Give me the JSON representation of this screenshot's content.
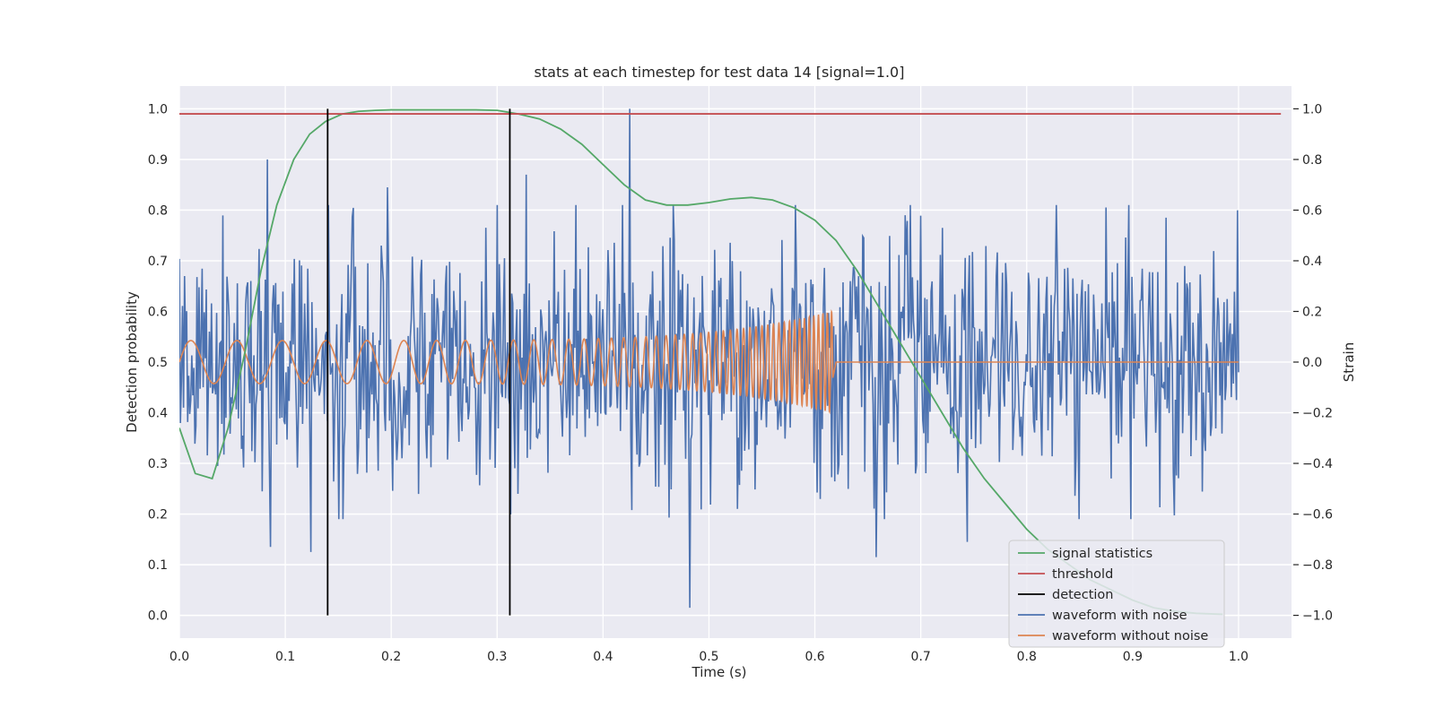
{
  "chart_data": {
    "type": "line",
    "title": "stats at each timestep for test data 14 [signal=1.0]",
    "xlabel": "Time (s)",
    "ylabel": "Detection probability",
    "y2label": "Strain",
    "xlim": [
      0.0,
      1.05
    ],
    "ylim": [
      -0.045,
      1.045
    ],
    "y2lim": [
      -1.09,
      1.09
    ],
    "x_ticks": [
      0.0,
      0.1,
      0.2,
      0.3,
      0.4,
      0.5,
      0.6,
      0.7,
      0.8,
      0.9,
      1.0
    ],
    "x_tick_labels": [
      "0.0",
      "0.1",
      "0.2",
      "0.3",
      "0.4",
      "0.5",
      "0.6",
      "0.7",
      "0.8",
      "0.9",
      "1.0"
    ],
    "y_ticks": [
      0.0,
      0.1,
      0.2,
      0.3,
      0.4,
      0.5,
      0.6,
      0.7,
      0.8,
      0.9,
      1.0
    ],
    "y_tick_labels": [
      "0.0",
      "0.1",
      "0.2",
      "0.3",
      "0.4",
      "0.5",
      "0.6",
      "0.7",
      "0.8",
      "0.9",
      "1.0"
    ],
    "y2_ticks": [
      -1.0,
      -0.8,
      -0.6,
      -0.4,
      -0.2,
      0.0,
      0.2,
      0.4,
      0.6,
      0.8,
      1.0
    ],
    "y2_tick_labels": [
      "−1.0",
      "−0.8",
      "−0.6",
      "−0.4",
      "−0.2",
      "0.0",
      "0.2",
      "0.4",
      "0.6",
      "0.8",
      "1.0"
    ],
    "grid": true,
    "legend_position": "lower-right",
    "colors": {
      "background": "#eaeaf2",
      "grid": "#ffffff",
      "signal_statistics": "#55a868",
      "threshold": "#c44e52",
      "detection": "#000000",
      "waveform_with_noise": "#4c72b0",
      "waveform_without_noise": "#dd8452"
    },
    "legend": [
      {
        "key": "signal_statistics",
        "label": "signal statistics"
      },
      {
        "key": "threshold",
        "label": "threshold"
      },
      {
        "key": "detection",
        "label": "detection"
      },
      {
        "key": "waveform_with_noise",
        "label": "waveform with noise"
      },
      {
        "key": "waveform_without_noise",
        "label": "waveform without noise"
      }
    ],
    "series": {
      "signal_statistics": {
        "axis": "left",
        "x": [
          0.0,
          0.015,
          0.031,
          0.046,
          0.062,
          0.077,
          0.092,
          0.108,
          0.123,
          0.138,
          0.154,
          0.169,
          0.185,
          0.2,
          0.22,
          0.25,
          0.28,
          0.3,
          0.32,
          0.34,
          0.36,
          0.38,
          0.4,
          0.42,
          0.44,
          0.46,
          0.48,
          0.5,
          0.52,
          0.54,
          0.56,
          0.58,
          0.6,
          0.62,
          0.64,
          0.66,
          0.68,
          0.7,
          0.72,
          0.74,
          0.76,
          0.78,
          0.8,
          0.82,
          0.84,
          0.86,
          0.88,
          0.9,
          0.92,
          0.94,
          0.96,
          0.985
        ],
        "y": [
          0.37,
          0.28,
          0.27,
          0.37,
          0.52,
          0.68,
          0.81,
          0.9,
          0.95,
          0.975,
          0.99,
          0.995,
          0.997,
          0.998,
          0.998,
          0.998,
          0.998,
          0.997,
          0.99,
          0.98,
          0.96,
          0.93,
          0.89,
          0.85,
          0.82,
          0.81,
          0.81,
          0.815,
          0.822,
          0.825,
          0.82,
          0.805,
          0.78,
          0.74,
          0.68,
          0.61,
          0.54,
          0.47,
          0.4,
          0.33,
          0.27,
          0.22,
          0.17,
          0.13,
          0.1,
          0.07,
          0.05,
          0.03,
          0.015,
          0.008,
          0.004,
          0.002
        ]
      },
      "threshold": {
        "axis": "left",
        "x": [
          0.0,
          1.04
        ],
        "y": [
          0.99,
          0.99
        ]
      },
      "detection": {
        "axis": "left",
        "x": [
          0.14,
          0.312
        ],
        "ymin": 0.0,
        "ymax": 1.0
      },
      "waveform_with_noise": {
        "axis": "right",
        "note_points": "random noise, strain values",
        "x_start": 0.0,
        "x_end": 1.0,
        "n_points": 1024,
        "std": 0.24,
        "spikes": [
          {
            "x": 0.083,
            "y": 0.8
          },
          {
            "x": 0.425,
            "y": 1.0
          },
          {
            "x": 0.482,
            "y": -0.97
          },
          {
            "x": 0.086,
            "y": -0.73
          },
          {
            "x": 0.124,
            "y": -0.75
          },
          {
            "x": 0.658,
            "y": -0.77
          },
          {
            "x": 0.744,
            "y": -0.71
          },
          {
            "x": 0.196,
            "y": 0.69
          },
          {
            "x": 0.327,
            "y": 0.74
          },
          {
            "x": 0.685,
            "y": 0.58
          }
        ]
      },
      "waveform_without_noise": {
        "axis": "right",
        "note_points": "chirp waveform",
        "x_start": 0.0,
        "x_end": 0.617,
        "amplitude_start": 0.085,
        "amplitude_end": 0.2,
        "freq_start": 23,
        "freq_end": 250,
        "flat_until": 1.0
      }
    }
  }
}
